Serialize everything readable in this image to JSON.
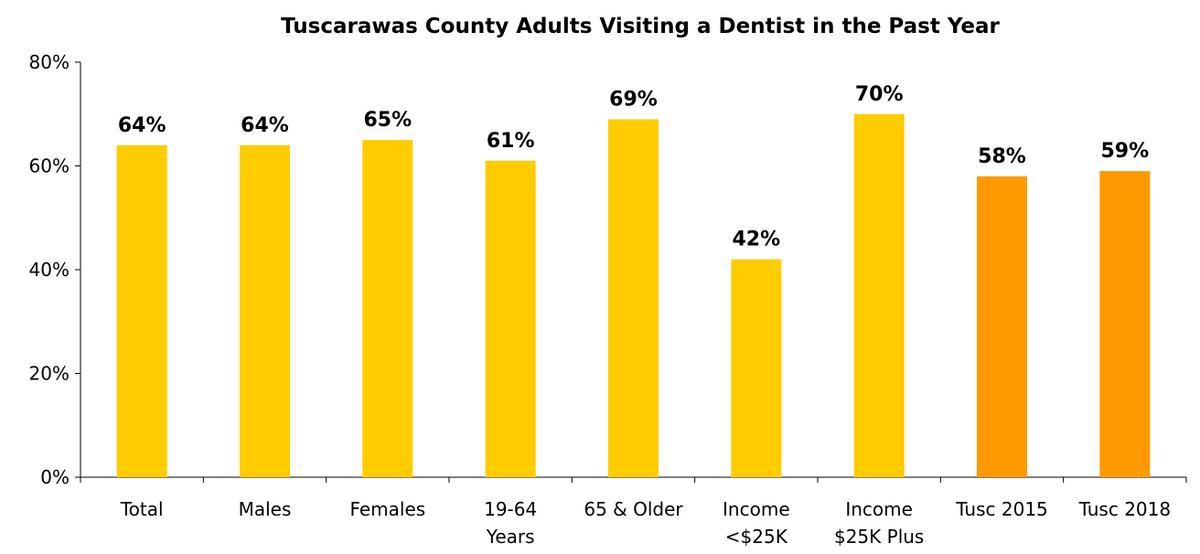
{
  "chart_data": {
    "type": "bar",
    "title": "Tuscarawas County Adults Visiting a Dentist in the Past Year",
    "xlabel": "",
    "ylabel": "",
    "ylim": [
      0,
      80
    ],
    "yticks": [
      "0%",
      "20%",
      "40%",
      "60%",
      "80%"
    ],
    "ytick_values": [
      0,
      20,
      40,
      60,
      80
    ],
    "grid": false,
    "legend": "none",
    "categories": [
      [
        "Total"
      ],
      [
        "Males"
      ],
      [
        "Females"
      ],
      [
        "19-64",
        "Years"
      ],
      [
        "65 & Older"
      ],
      [
        "Income",
        "<$25K"
      ],
      [
        "Income",
        "$25K Plus"
      ],
      [
        "Tusc 2015"
      ],
      [
        "Tusc 2018"
      ]
    ],
    "values": [
      64,
      64,
      65,
      61,
      69,
      42,
      70,
      58,
      59
    ],
    "data_labels": [
      "64%",
      "64%",
      "65%",
      "61%",
      "69%",
      "42%",
      "70%",
      "58%",
      "59%"
    ],
    "bar_colors": [
      "#FFCC00",
      "#FFCC00",
      "#FFCC00",
      "#FFCC00",
      "#FFCC00",
      "#FFCC00",
      "#FFCC00",
      "#FF9900",
      "#FF9900"
    ]
  }
}
